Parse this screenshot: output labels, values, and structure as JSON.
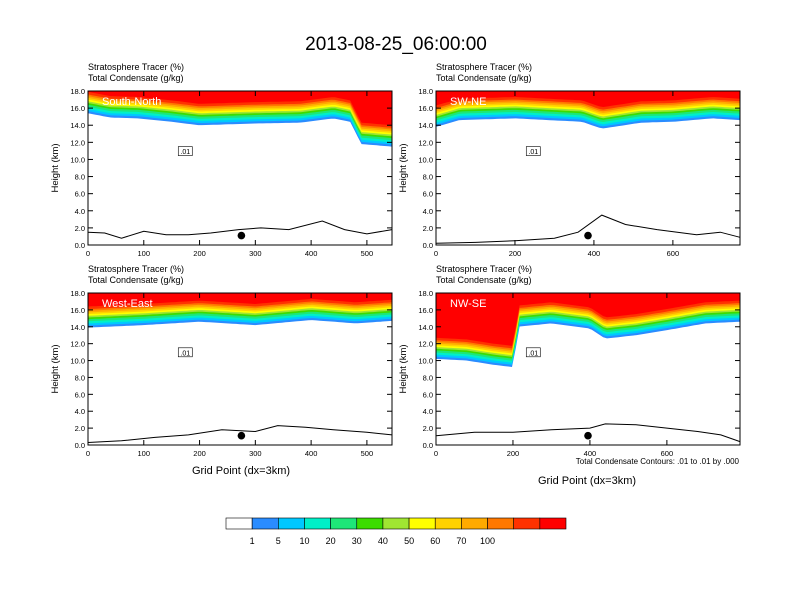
{
  "title": "2013-08-25_06:00:00",
  "subtitle_line1": "Stratosphere Tracer   (%)",
  "subtitle_line2": "Total Condensate   (g/kg)",
  "y_axis_label": "Height (km)",
  "x_axis_label": "Grid Point (dx=3km)",
  "contour_note": "Total Condensate Contours: .01 to .01 by .000",
  "contour_label": ".01",
  "colors": {
    "background": "#ffffff",
    "outline": "#000000"
  },
  "chart_data": [
    {
      "type": "heatmap",
      "panel": "top-left",
      "label": "South-North",
      "xlim": [
        0,
        545
      ],
      "ylim": [
        0,
        18
      ],
      "x_ticks": [
        "0",
        "100",
        "200",
        "300",
        "400",
        "500"
      ],
      "x_tick_values": [
        0,
        100,
        200,
        300,
        400,
        500
      ],
      "y_ticks": [
        "0.0",
        "2.0",
        "4.0",
        "6.0",
        "8.0",
        "10.0",
        "12.0",
        "14.0",
        "16.0",
        "18.0"
      ],
      "tracer_base_km": [
        [
          0,
          15.4
        ],
        [
          40,
          14.9
        ],
        [
          90,
          14.8
        ],
        [
          150,
          14.4
        ],
        [
          200,
          14.0
        ],
        [
          300,
          14.2
        ],
        [
          380,
          14.3
        ],
        [
          440,
          14.8
        ],
        [
          470,
          14.4
        ],
        [
          490,
          11.8
        ],
        [
          545,
          11.5
        ]
      ],
      "terrain_km": [
        [
          0,
          1.5
        ],
        [
          30,
          1.4
        ],
        [
          60,
          0.8
        ],
        [
          100,
          1.6
        ],
        [
          140,
          1.2
        ],
        [
          180,
          1.2
        ],
        [
          220,
          1.4
        ],
        [
          270,
          1.8
        ],
        [
          310,
          2.0
        ],
        [
          360,
          1.8
        ],
        [
          420,
          2.8
        ],
        [
          460,
          1.8
        ],
        [
          500,
          1.3
        ],
        [
          545,
          1.8
        ]
      ],
      "marker": {
        "x": 275,
        "y_km": 1.1
      }
    },
    {
      "type": "heatmap",
      "panel": "top-right",
      "label": "SW-NE",
      "xlim": [
        0,
        770
      ],
      "ylim": [
        0,
        18
      ],
      "x_ticks": [
        "0",
        "200",
        "400",
        "600"
      ],
      "x_tick_values": [
        0,
        200,
        400,
        600
      ],
      "y_ticks": [
        "0.0",
        "2.0",
        "4.0",
        "6.0",
        "8.0",
        "10.0",
        "12.0",
        "14.0",
        "16.0",
        "18.0"
      ],
      "tracer_base_km": [
        [
          0,
          13.8
        ],
        [
          60,
          14.6
        ],
        [
          200,
          14.8
        ],
        [
          370,
          14.4
        ],
        [
          420,
          13.6
        ],
        [
          520,
          14.3
        ],
        [
          600,
          14.4
        ],
        [
          700,
          14.8
        ],
        [
          770,
          14.6
        ]
      ],
      "terrain_km": [
        [
          0,
          0.2
        ],
        [
          100,
          0.3
        ],
        [
          200,
          0.5
        ],
        [
          300,
          0.8
        ],
        [
          360,
          1.5
        ],
        [
          420,
          3.5
        ],
        [
          480,
          2.4
        ],
        [
          560,
          1.8
        ],
        [
          660,
          1.2
        ],
        [
          720,
          1.5
        ],
        [
          770,
          0.9
        ]
      ],
      "marker": {
        "x": 385,
        "y_km": 1.1
      }
    },
    {
      "type": "heatmap",
      "panel": "bottom-left",
      "label": "West-East",
      "xlim": [
        0,
        545
      ],
      "ylim": [
        0,
        18
      ],
      "x_ticks": [
        "0",
        "100",
        "200",
        "300",
        "400",
        "500"
      ],
      "x_tick_values": [
        0,
        100,
        200,
        300,
        400,
        500
      ],
      "y_ticks": [
        "0.0",
        "2.0",
        "4.0",
        "6.0",
        "8.0",
        "10.0",
        "12.0",
        "14.0",
        "16.0",
        "18.0"
      ],
      "tracer_base_km": [
        [
          0,
          13.9
        ],
        [
          100,
          14.2
        ],
        [
          200,
          14.6
        ],
        [
          300,
          14.2
        ],
        [
          400,
          14.8
        ],
        [
          480,
          14.4
        ],
        [
          545,
          14.7
        ]
      ],
      "terrain_km": [
        [
          0,
          0.3
        ],
        [
          60,
          0.5
        ],
        [
          120,
          0.9
        ],
        [
          180,
          1.2
        ],
        [
          240,
          1.8
        ],
        [
          300,
          1.6
        ],
        [
          340,
          2.3
        ],
        [
          390,
          2.1
        ],
        [
          440,
          1.8
        ],
        [
          500,
          1.5
        ],
        [
          545,
          1.2
        ]
      ],
      "marker": {
        "x": 275,
        "y_km": 1.1
      }
    },
    {
      "type": "heatmap",
      "panel": "bottom-right",
      "label": "NW-SE",
      "xlim": [
        0,
        790
      ],
      "ylim": [
        0,
        18
      ],
      "x_ticks": [
        "0",
        "200",
        "400",
        "600"
      ],
      "x_tick_values": [
        0,
        200,
        400,
        600
      ],
      "y_ticks": [
        "0.0",
        "2.0",
        "4.0",
        "6.0",
        "8.0",
        "10.0",
        "12.0",
        "14.0",
        "16.0",
        "18.0"
      ],
      "tracer_base_km": [
        [
          0,
          10.2
        ],
        [
          80,
          10.0
        ],
        [
          150,
          9.5
        ],
        [
          205,
          9.2
        ],
        [
          210,
          14.0
        ],
        [
          300,
          14.4
        ],
        [
          400,
          13.8
        ],
        [
          440,
          12.6
        ],
        [
          520,
          13.0
        ],
        [
          600,
          13.6
        ],
        [
          700,
          14.4
        ],
        [
          790,
          14.6
        ]
      ],
      "terrain_km": [
        [
          0,
          1.1
        ],
        [
          100,
          1.5
        ],
        [
          200,
          1.5
        ],
        [
          300,
          1.8
        ],
        [
          400,
          2.0
        ],
        [
          440,
          2.5
        ],
        [
          520,
          2.4
        ],
        [
          600,
          2.0
        ],
        [
          680,
          1.6
        ],
        [
          740,
          1.2
        ],
        [
          790,
          0.4
        ]
      ],
      "marker": {
        "x": 395,
        "y_km": 1.1
      }
    }
  ],
  "colorbar": {
    "colors": [
      "#ffffff",
      "#2a8cff",
      "#00c8ff",
      "#00f0c8",
      "#1ee678",
      "#3cdc00",
      "#a0e632",
      "#ffff00",
      "#ffd200",
      "#ffaa00",
      "#ff7800",
      "#ff3200",
      "#ff0000"
    ],
    "labels": [
      "1",
      "5",
      "10",
      "20",
      "30",
      "40",
      "50",
      "60",
      "70",
      "100"
    ]
  }
}
